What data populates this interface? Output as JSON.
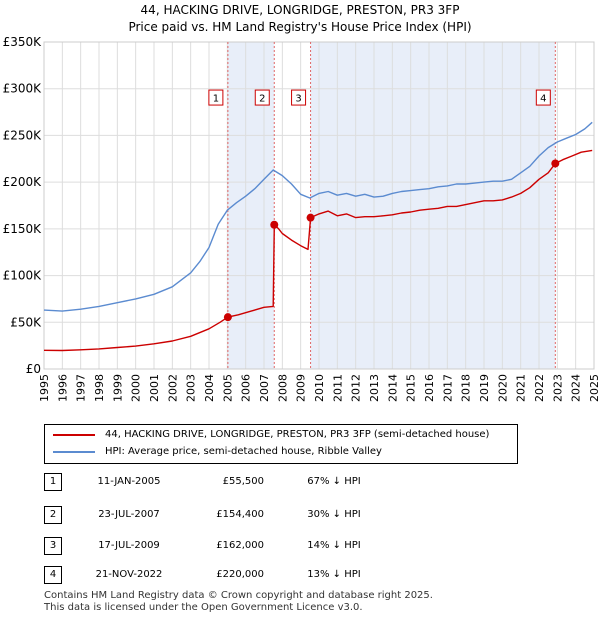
{
  "chart_data": {
    "type": "line",
    "title": "44, HACKING DRIVE, LONGRIDGE, PRESTON, PR3 3FP",
    "subtitle": "Price paid vs. HM Land Registry's House Price Index (HPI)",
    "xlim": [
      1995,
      2025
    ],
    "ylim": [
      0,
      350000
    ],
    "y_ticks": [
      0,
      50000,
      100000,
      150000,
      200000,
      250000,
      300000,
      350000
    ],
    "y_tick_labels": [
      "£0",
      "£50K",
      "£100K",
      "£150K",
      "£200K",
      "£250K",
      "£300K",
      "£350K"
    ],
    "x_ticks": [
      1995,
      1996,
      1997,
      1998,
      1999,
      2000,
      2001,
      2002,
      2003,
      2004,
      2005,
      2006,
      2007,
      2008,
      2009,
      2010,
      2011,
      2012,
      2013,
      2014,
      2015,
      2016,
      2017,
      2018,
      2019,
      2020,
      2021,
      2022,
      2023,
      2024,
      2025
    ],
    "x_tick_labels": [
      "1995",
      "1996",
      "1997",
      "1998",
      "1999",
      "2000",
      "2001",
      "2002",
      "2003",
      "2004",
      "2005",
      "2006",
      "2007",
      "2008",
      "2009",
      "2010",
      "2011",
      "2012",
      "2013",
      "2014",
      "2015",
      "2016",
      "2017",
      "2018",
      "2019",
      "2020",
      "2021",
      "2022",
      "2023",
      "2024",
      "2025"
    ],
    "grid": true,
    "shaded_spans": [
      [
        2005.03,
        2007.56
      ],
      [
        2009.54,
        2022.89
      ]
    ],
    "series": [
      {
        "name": "44, HACKING DRIVE, LONGRIDGE, PRESTON, PR3 3FP (semi-detached house)",
        "color": "#cc0000",
        "x": [
          1995,
          1996,
          1997,
          1998,
          1999,
          2000,
          2001,
          2002,
          2003,
          2004,
          2004.6,
          2005.03,
          2005.6,
          2006.3,
          2007.0,
          2007.5,
          2007.56,
          2007.8,
          2008.0,
          2008.5,
          2009.0,
          2009.4,
          2009.54,
          2010.0,
          2010.5,
          2011.0,
          2011.5,
          2012.0,
          2012.5,
          2013.0,
          2013.5,
          2014.0,
          2014.5,
          2015.0,
          2015.5,
          2016.0,
          2016.5,
          2017.0,
          2017.5,
          2018.0,
          2018.5,
          2019.0,
          2019.5,
          2020.0,
          2020.5,
          2021.0,
          2021.5,
          2022.0,
          2022.5,
          2022.89,
          2023.3,
          2023.8,
          2024.3,
          2024.9
        ],
        "y": [
          20000,
          19800,
          20500,
          21500,
          23000,
          24500,
          27000,
          30000,
          35000,
          43000,
          50000,
          55500,
          58000,
          62000,
          66000,
          67000,
          154400,
          150000,
          145000,
          138000,
          132000,
          128000,
          162000,
          166000,
          169000,
          164000,
          166000,
          162000,
          163000,
          163000,
          164000,
          165000,
          167000,
          168000,
          170000,
          171000,
          172000,
          174000,
          174000,
          176000,
          178000,
          180000,
          180000,
          181000,
          184000,
          188000,
          194000,
          203000,
          210000,
          220000,
          224000,
          228000,
          232000,
          234000
        ]
      },
      {
        "name": "HPI: Average price, semi-detached house, Ribble Valley",
        "color": "#5b8bd0",
        "x": [
          1995,
          1996,
          1997,
          1998,
          1999,
          2000,
          2001,
          2002,
          2003,
          2003.5,
          2004,
          2004.5,
          2005.0,
          2005.5,
          2006.0,
          2006.5,
          2007.0,
          2007.5,
          2008.0,
          2008.5,
          2009.0,
          2009.5,
          2010.0,
          2010.5,
          2011.0,
          2011.5,
          2012.0,
          2012.5,
          2013.0,
          2013.5,
          2014.0,
          2014.5,
          2015.0,
          2015.5,
          2016.0,
          2016.5,
          2017.0,
          2017.5,
          2018.0,
          2018.5,
          2019.0,
          2019.5,
          2020.0,
          2020.5,
          2021.0,
          2021.5,
          2022.0,
          2022.5,
          2023.0,
          2023.5,
          2024.0,
          2024.5,
          2024.9
        ],
        "y": [
          63000,
          62000,
          64000,
          67000,
          71000,
          75000,
          80000,
          88000,
          103000,
          115000,
          130000,
          155000,
          170000,
          178000,
          185000,
          193000,
          203000,
          213000,
          207000,
          198000,
          187000,
          183000,
          188000,
          190000,
          186000,
          188000,
          185000,
          187000,
          184000,
          185000,
          188000,
          190000,
          191000,
          192000,
          193000,
          195000,
          196000,
          198000,
          198000,
          199000,
          200000,
          201000,
          201000,
          203000,
          210000,
          217000,
          228000,
          237000,
          243000,
          247000,
          251000,
          257000,
          264000
        ]
      }
    ],
    "annotations": [
      {
        "label": "1",
        "x": 2005.03,
        "y": 55500,
        "box_y": 290000
      },
      {
        "label": "2",
        "x": 2007.56,
        "y": 154400,
        "box_y": 290000
      },
      {
        "label": "3",
        "x": 2009.54,
        "y": 162000,
        "box_y": 290000
      },
      {
        "label": "4",
        "x": 2022.89,
        "y": 220000,
        "box_y": 290000
      }
    ]
  },
  "legend": {
    "property": "44, HACKING DRIVE, LONGRIDGE, PRESTON, PR3 3FP (semi-detached house)",
    "hpi": "HPI: Average price, semi-detached house, Ribble Valley"
  },
  "transactions": [
    {
      "num": "1",
      "date": "11-JAN-2005",
      "price": "£55,500",
      "hpi": "67% ↓ HPI"
    },
    {
      "num": "2",
      "date": "23-JUL-2007",
      "price": "£154,400",
      "hpi": "30% ↓ HPI"
    },
    {
      "num": "3",
      "date": "17-JUL-2009",
      "price": "£162,000",
      "hpi": "14% ↓ HPI"
    },
    {
      "num": "4",
      "date": "21-NOV-2022",
      "price": "£220,000",
      "hpi": "13% ↓ HPI"
    }
  ],
  "footer": {
    "line1": "Contains HM Land Registry data © Crown copyright and database right 2025.",
    "line2": "This data is licensed under the Open Government Licence v3.0."
  }
}
